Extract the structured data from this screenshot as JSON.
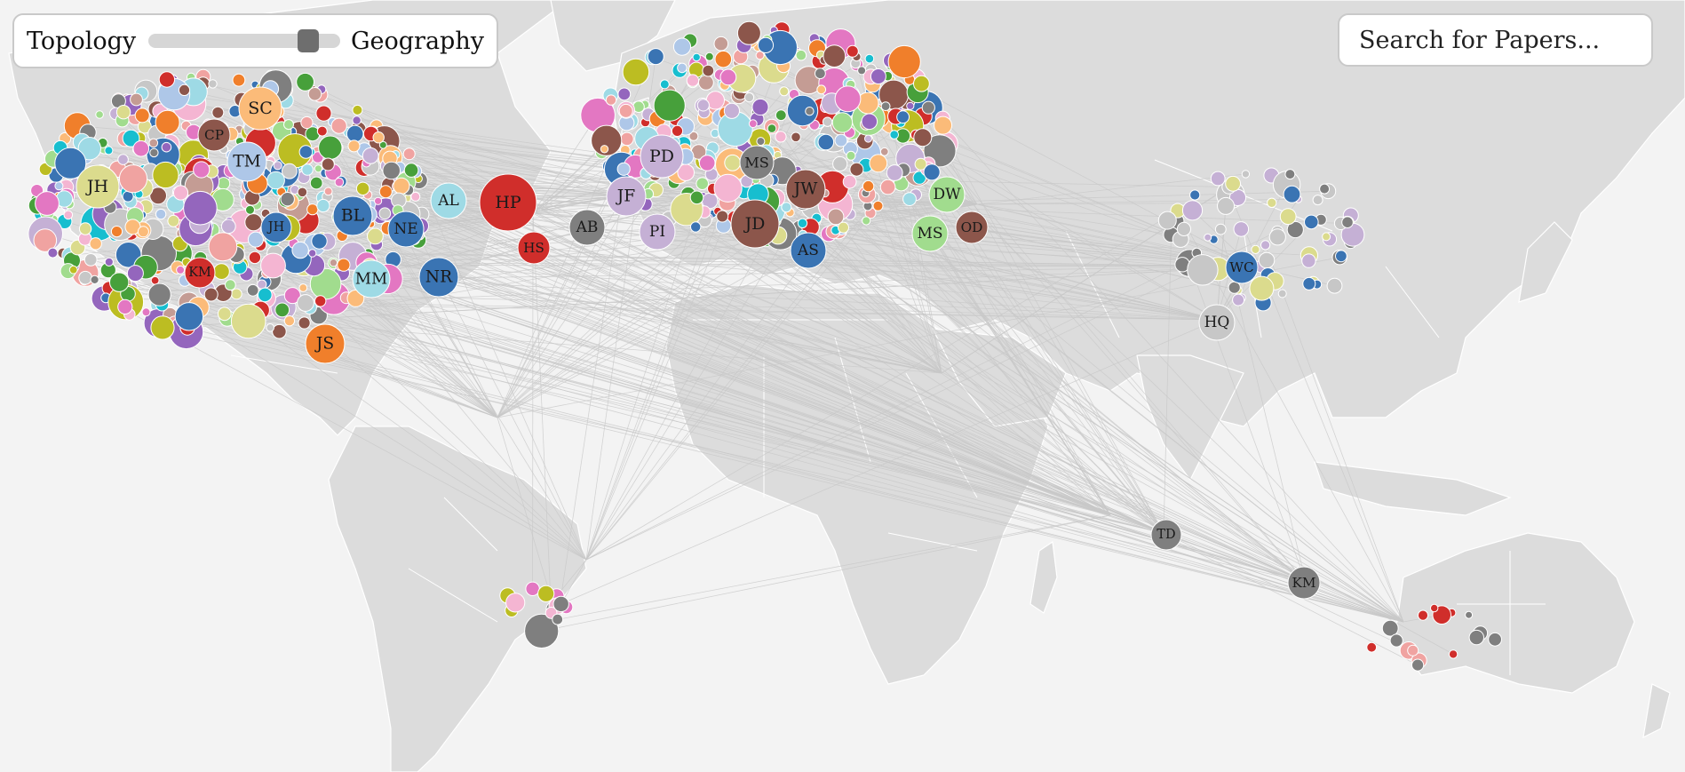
{
  "controls": {
    "topology_label": "Topology",
    "geography_label": "Geography",
    "slider_value": 0.85,
    "search_placeholder": "Search for Papers..."
  },
  "colors": {
    "ocean": "#f3f3f3",
    "land": "#dcdcdc",
    "edge": "#c8c8c8",
    "blue": "#3a74b3",
    "light_blue": "#aec7e8",
    "orange": "#f07f2b",
    "light_orange": "#fbbb79",
    "green": "#47a03b",
    "light_green": "#a1dc8e",
    "red": "#d02e2b",
    "pink": "#f0a3a1",
    "purple": "#9466bd",
    "lavender": "#c5b0d5",
    "brown": "#8c564b",
    "tan": "#c49c94",
    "magenta": "#e377c2",
    "light_magenta": "#f4b5d2",
    "gray": "#7f7f7f",
    "light_gray": "#c7c7c7",
    "olive": "#bcbd22",
    "khaki": "#dbdb8d",
    "teal": "#17becf",
    "light_teal": "#9edae5"
  },
  "labeled_nodes": [
    {
      "label": "SC",
      "color": "light_orange"
    },
    {
      "label": "CP",
      "color": "brown"
    },
    {
      "label": "TM",
      "color": "light_blue"
    },
    {
      "label": "JH",
      "color": "khaki"
    },
    {
      "label": "JH",
      "color": "blue"
    },
    {
      "label": "BL",
      "color": "blue"
    },
    {
      "label": "NE",
      "color": "blue"
    },
    {
      "label": "AL",
      "color": "light_teal"
    },
    {
      "label": "HP",
      "color": "red"
    },
    {
      "label": "HS",
      "color": "red"
    },
    {
      "label": "KM",
      "color": "red"
    },
    {
      "label": "MM",
      "color": "light_teal"
    },
    {
      "label": "NR",
      "color": "blue"
    },
    {
      "label": "JS",
      "color": "orange"
    },
    {
      "label": "AB",
      "color": "gray"
    },
    {
      "label": "JF",
      "color": "lavender"
    },
    {
      "label": "PD",
      "color": "lavender"
    },
    {
      "label": "PI",
      "color": "lavender"
    },
    {
      "label": "MS",
      "color": "gray"
    },
    {
      "label": "JW",
      "color": "brown"
    },
    {
      "label": "JD",
      "color": "brown"
    },
    {
      "label": "AS",
      "color": "blue"
    },
    {
      "label": "DW",
      "color": "light_green"
    },
    {
      "label": "MS",
      "color": "light_green"
    },
    {
      "label": "OD",
      "color": "brown"
    },
    {
      "label": "WC",
      "color": "blue"
    },
    {
      "label": "HQ",
      "color": "light_gray"
    },
    {
      "label": "TD",
      "color": "gray"
    },
    {
      "label": "KM",
      "color": "gray"
    }
  ]
}
